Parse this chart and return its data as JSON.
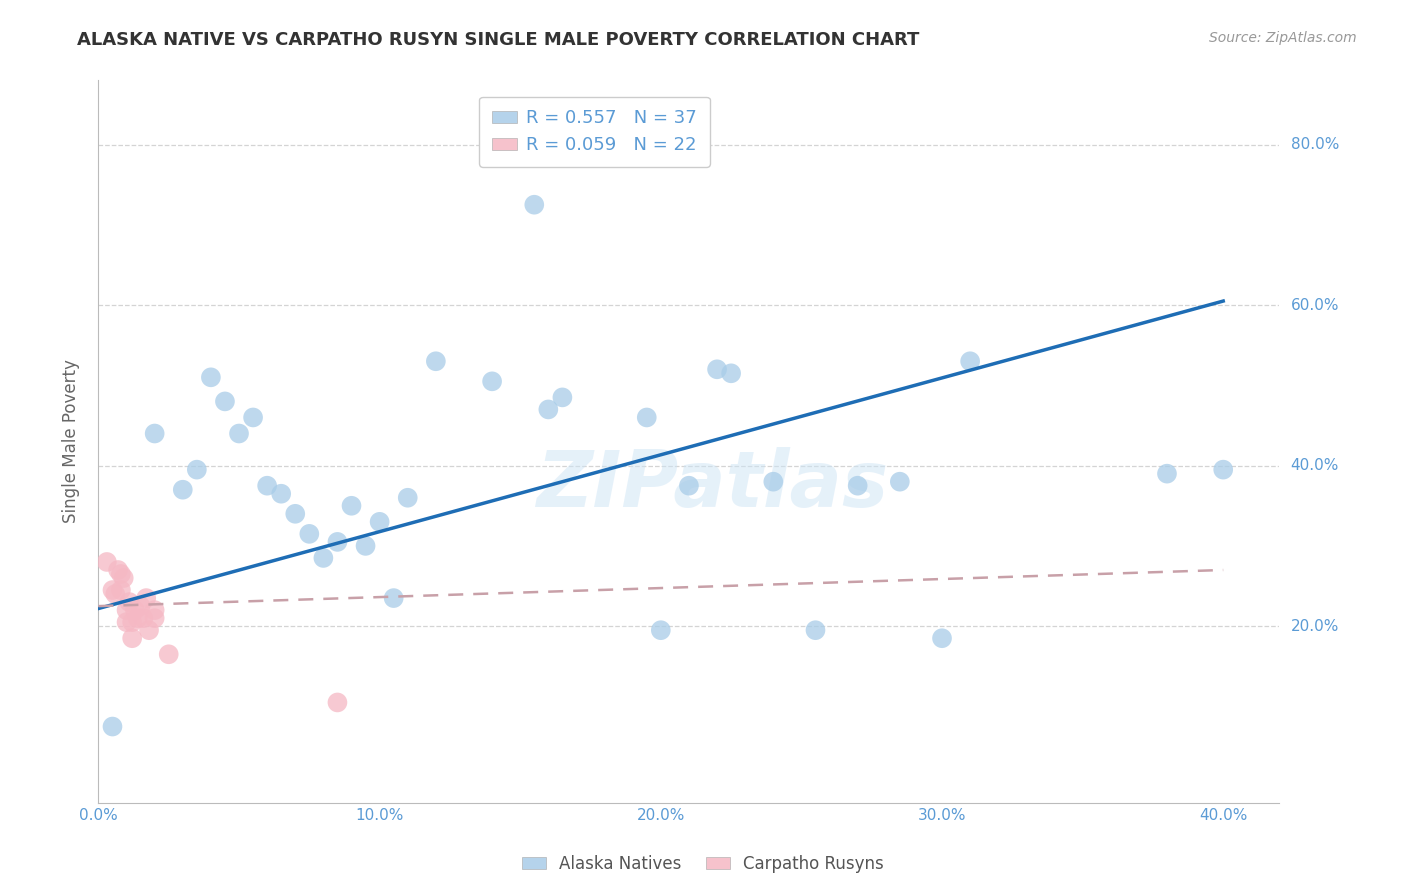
{
  "title": "ALASKA NATIVE VS CARPATHO RUSYN SINGLE MALE POVERTY CORRELATION CHART",
  "source": "Source: ZipAtlas.com",
  "ylabel": "Single Male Poverty",
  "xlim": [
    0.0,
    0.42
  ],
  "ylim": [
    -0.02,
    0.88
  ],
  "xtick_labels": [
    "0.0%",
    "",
    "",
    "",
    "",
    "10.0%",
    "",
    "",
    "",
    "",
    "20.0%",
    "",
    "",
    "",
    "",
    "30.0%",
    "",
    "",
    "",
    "",
    "40.0%"
  ],
  "xtick_vals": [
    0.0,
    0.02,
    0.04,
    0.06,
    0.08,
    0.1,
    0.12,
    0.14,
    0.16,
    0.18,
    0.2,
    0.22,
    0.24,
    0.26,
    0.28,
    0.3,
    0.32,
    0.34,
    0.36,
    0.38,
    0.4
  ],
  "ytick_labels": [
    "20.0%",
    "40.0%",
    "60.0%",
    "80.0%"
  ],
  "ytick_vals": [
    0.2,
    0.4,
    0.6,
    0.8
  ],
  "legend_R1": "R = 0.557",
  "legend_N1": "N = 37",
  "legend_R2": "R = 0.059",
  "legend_N2": "N = 22",
  "alaska_color": "#a8cce8",
  "carpatho_color": "#f5b8c4",
  "alaska_line_color": "#1e6db5",
  "carpatho_line_color": "#c8a0a8",
  "background_color": "#ffffff",
  "grid_color": "#d0d0d0",
  "axis_label_color": "#5b9bd5",
  "tick_label_color": "#5b9bd5",
  "ylabel_color": "#666666",
  "title_color": "#333333",
  "source_color": "#999999",
  "watermark": "ZIPatlas",
  "alaska_line_x0": 0.0,
  "alaska_line_y0": 0.222,
  "alaska_line_x1": 0.4,
  "alaska_line_y1": 0.605,
  "carpatho_line_x0": 0.0,
  "carpatho_line_y0": 0.225,
  "carpatho_line_x1": 0.4,
  "carpatho_line_y1": 0.27,
  "alaska_x": [
    0.005,
    0.02,
    0.03,
    0.035,
    0.04,
    0.045,
    0.05,
    0.055,
    0.06,
    0.065,
    0.07,
    0.075,
    0.08,
    0.085,
    0.09,
    0.095,
    0.1,
    0.105,
    0.11,
    0.12,
    0.14,
    0.155,
    0.16,
    0.165,
    0.195,
    0.2,
    0.21,
    0.22,
    0.225,
    0.24,
    0.255,
    0.27,
    0.285,
    0.3,
    0.31,
    0.38,
    0.4
  ],
  "alaska_y": [
    0.075,
    0.44,
    0.37,
    0.395,
    0.51,
    0.48,
    0.44,
    0.46,
    0.375,
    0.365,
    0.34,
    0.315,
    0.285,
    0.305,
    0.35,
    0.3,
    0.33,
    0.235,
    0.36,
    0.53,
    0.505,
    0.725,
    0.47,
    0.485,
    0.46,
    0.195,
    0.375,
    0.52,
    0.515,
    0.38,
    0.195,
    0.375,
    0.38,
    0.185,
    0.53,
    0.39,
    0.395
  ],
  "carpatho_x": [
    0.003,
    0.005,
    0.006,
    0.007,
    0.008,
    0.008,
    0.009,
    0.01,
    0.01,
    0.011,
    0.012,
    0.012,
    0.013,
    0.014,
    0.015,
    0.016,
    0.017,
    0.018,
    0.02,
    0.02,
    0.025,
    0.085
  ],
  "carpatho_y": [
    0.28,
    0.245,
    0.24,
    0.27,
    0.265,
    0.245,
    0.26,
    0.22,
    0.205,
    0.23,
    0.205,
    0.185,
    0.22,
    0.21,
    0.225,
    0.21,
    0.235,
    0.195,
    0.21,
    0.22,
    0.165,
    0.105
  ]
}
